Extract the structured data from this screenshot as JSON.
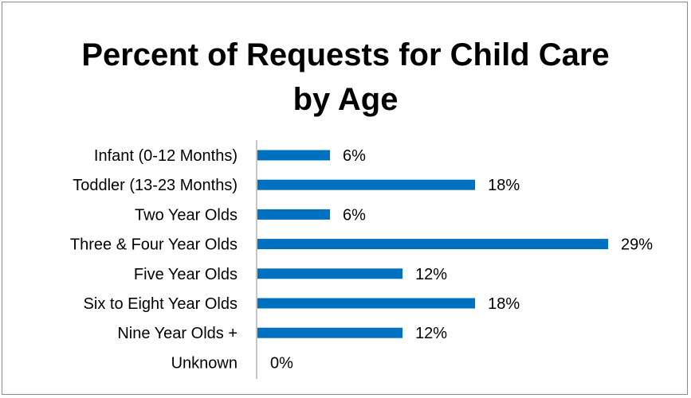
{
  "chart_data": {
    "type": "bar",
    "orientation": "horizontal",
    "title": "Percent of Requests for Child Care\nby Age",
    "categories": [
      "Infant (0-12 Months)",
      "Toddler (13-23 Months)",
      "Two Year Olds",
      "Three & Four Year Olds",
      "Five Year Olds",
      "Six to Eight Year Olds",
      "Nine Year Olds +",
      "Unknown"
    ],
    "values": [
      6,
      18,
      6,
      29,
      12,
      18,
      12,
      0
    ],
    "value_labels": [
      "6%",
      "18%",
      "6%",
      "29%",
      "12%",
      "18%",
      "12%",
      "0%"
    ],
    "xlim": [
      0,
      30
    ],
    "grid": false,
    "legend": "none",
    "bar_color": "#0070C0"
  }
}
